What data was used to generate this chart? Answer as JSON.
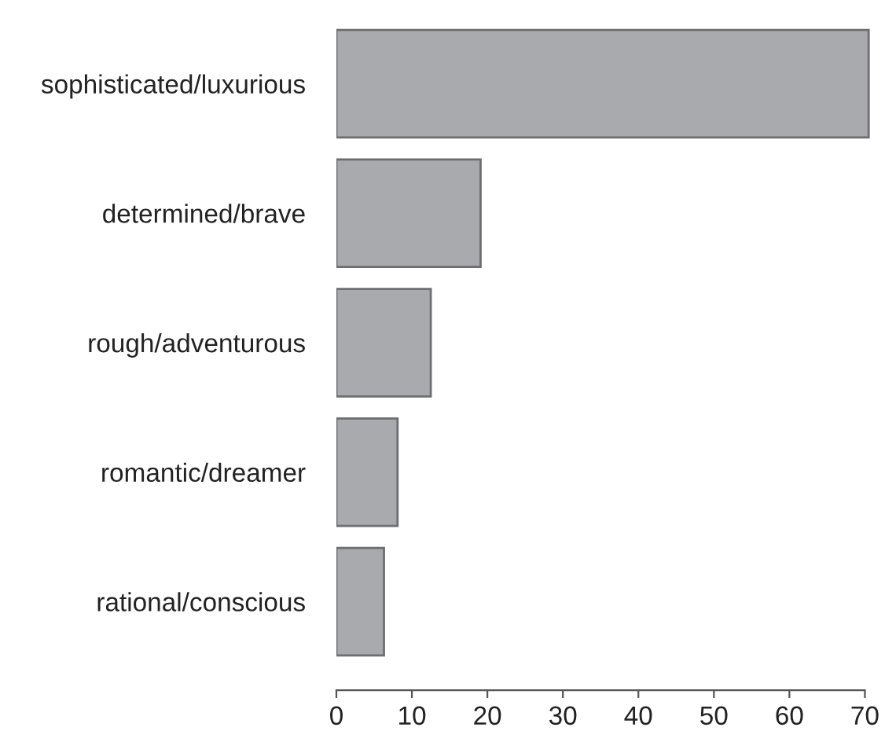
{
  "chart_data": {
    "type": "bar",
    "orientation": "horizontal",
    "categories": [
      "sophisticated/luxurious",
      "determined/brave",
      "rough/adventurous",
      "romantic/dreamer",
      "rational/conscious"
    ],
    "values": [
      70.5,
      19.1,
      12.5,
      8.1,
      6.3
    ],
    "color": "#a9aaae",
    "xlim": [
      0,
      71
    ],
    "xticks": [
      0,
      10,
      20,
      30,
      40,
      50,
      60,
      70
    ],
    "grid": false,
    "legend": false
  }
}
